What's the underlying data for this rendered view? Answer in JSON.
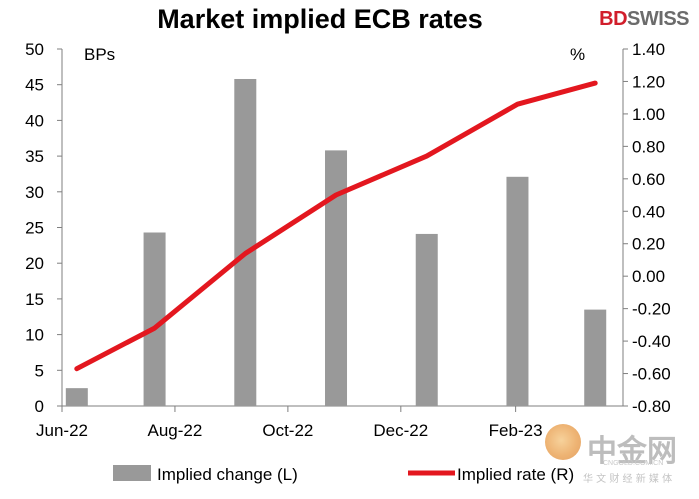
{
  "header": {
    "title": "Market implied ECB rates"
  },
  "brand": {
    "part1": "BD",
    "part2": "SWISS"
  },
  "watermark": {
    "chinese": "中金网",
    "url": "CNGOLD.COM.CN",
    "subtitle": "华 文 财 经 新 媒 体"
  },
  "colors": {
    "bars": "#999999",
    "line": "#e3171f",
    "axis": "#7f7f7f",
    "brand_red": "#d11e2b"
  },
  "chart_data": {
    "type": "bar+line",
    "title": "Market implied ECB rates",
    "left_axis_label": "BPs",
    "right_axis_label": "%",
    "ylim_left": [
      0,
      50
    ],
    "ylim_right": [
      -0.8,
      1.4
    ],
    "left_ticks": [
      "0",
      "5",
      "10",
      "15",
      "20",
      "25",
      "30",
      "35",
      "40",
      "45",
      "50"
    ],
    "right_ticks": [
      "-0.80",
      "-0.60",
      "-0.40",
      "-0.20",
      "0.00",
      "0.20",
      "0.40",
      "0.60",
      "0.80",
      "1.00",
      "1.20",
      "1.40"
    ],
    "x_labels": [
      "Jun-22",
      "Aug-22",
      "Oct-22",
      "Dec-22",
      "Feb-23"
    ],
    "x_range": [
      "2022-06-01",
      "2023-03-31"
    ],
    "grid": false,
    "legend_position": "bottom",
    "series": [
      {
        "name": "Implied change (L)",
        "kind": "bar",
        "axis": "left",
        "points": [
          {
            "x": "2022-06-09",
            "y": 2.5
          },
          {
            "x": "2022-07-21",
            "y": 24.3
          },
          {
            "x": "2022-09-08",
            "y": 45.8
          },
          {
            "x": "2022-10-27",
            "y": 35.8
          },
          {
            "x": "2022-12-15",
            "y": 24.1
          },
          {
            "x": "2023-02-02",
            "y": 32.1
          },
          {
            "x": "2023-03-16",
            "y": 13.5
          }
        ]
      },
      {
        "name": "Implied rate (R)",
        "kind": "line",
        "axis": "right",
        "points": [
          {
            "x": "2022-06-09",
            "y": -0.57
          },
          {
            "x": "2022-07-21",
            "y": -0.32
          },
          {
            "x": "2022-09-08",
            "y": 0.14
          },
          {
            "x": "2022-10-27",
            "y": 0.5
          },
          {
            "x": "2022-12-15",
            "y": 0.74
          },
          {
            "x": "2023-02-02",
            "y": 1.06
          },
          {
            "x": "2023-03-16",
            "y": 1.19
          }
        ]
      }
    ]
  }
}
